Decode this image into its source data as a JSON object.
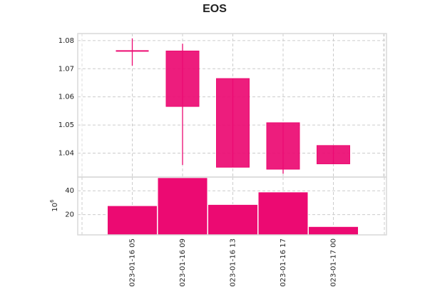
{
  "chart_data": {
    "type": "candlestick",
    "title": "EOS",
    "categories": [
      "023-01-16 05",
      "023-01-16 09",
      "023-01-16 13",
      "023-01-16 17",
      "023-01-17 00"
    ],
    "candles": [
      {
        "open": 1.0763,
        "close": 1.0763,
        "high": 1.0808,
        "low": 1.0711
      },
      {
        "open": 1.0763,
        "close": 1.0566,
        "high": 1.0789,
        "low": 1.0358
      },
      {
        "open": 1.0665,
        "close": 1.035,
        "high": 1.0665,
        "low": 1.035
      },
      {
        "open": 1.0508,
        "close": 1.0343,
        "high": 1.0508,
        "low": 1.0327
      },
      {
        "open": 1.0427,
        "close": 1.0362,
        "high": 1.0427,
        "low": 1.0362
      }
    ],
    "volume_series": {
      "values": [
        27.5,
        51,
        28.5,
        39,
        10
      ]
    },
    "price_ylim": [
      1.0315,
      1.0825
    ],
    "price_yticks": [
      1.04,
      1.05,
      1.06,
      1.07,
      1.08
    ],
    "volume_ylim": [
      3,
      51.5
    ],
    "volume_yticks": [
      20,
      40
    ],
    "volume_scale_label": "10",
    "volume_scale_exponent": "6",
    "grid": true,
    "color": "#ec0a72"
  }
}
